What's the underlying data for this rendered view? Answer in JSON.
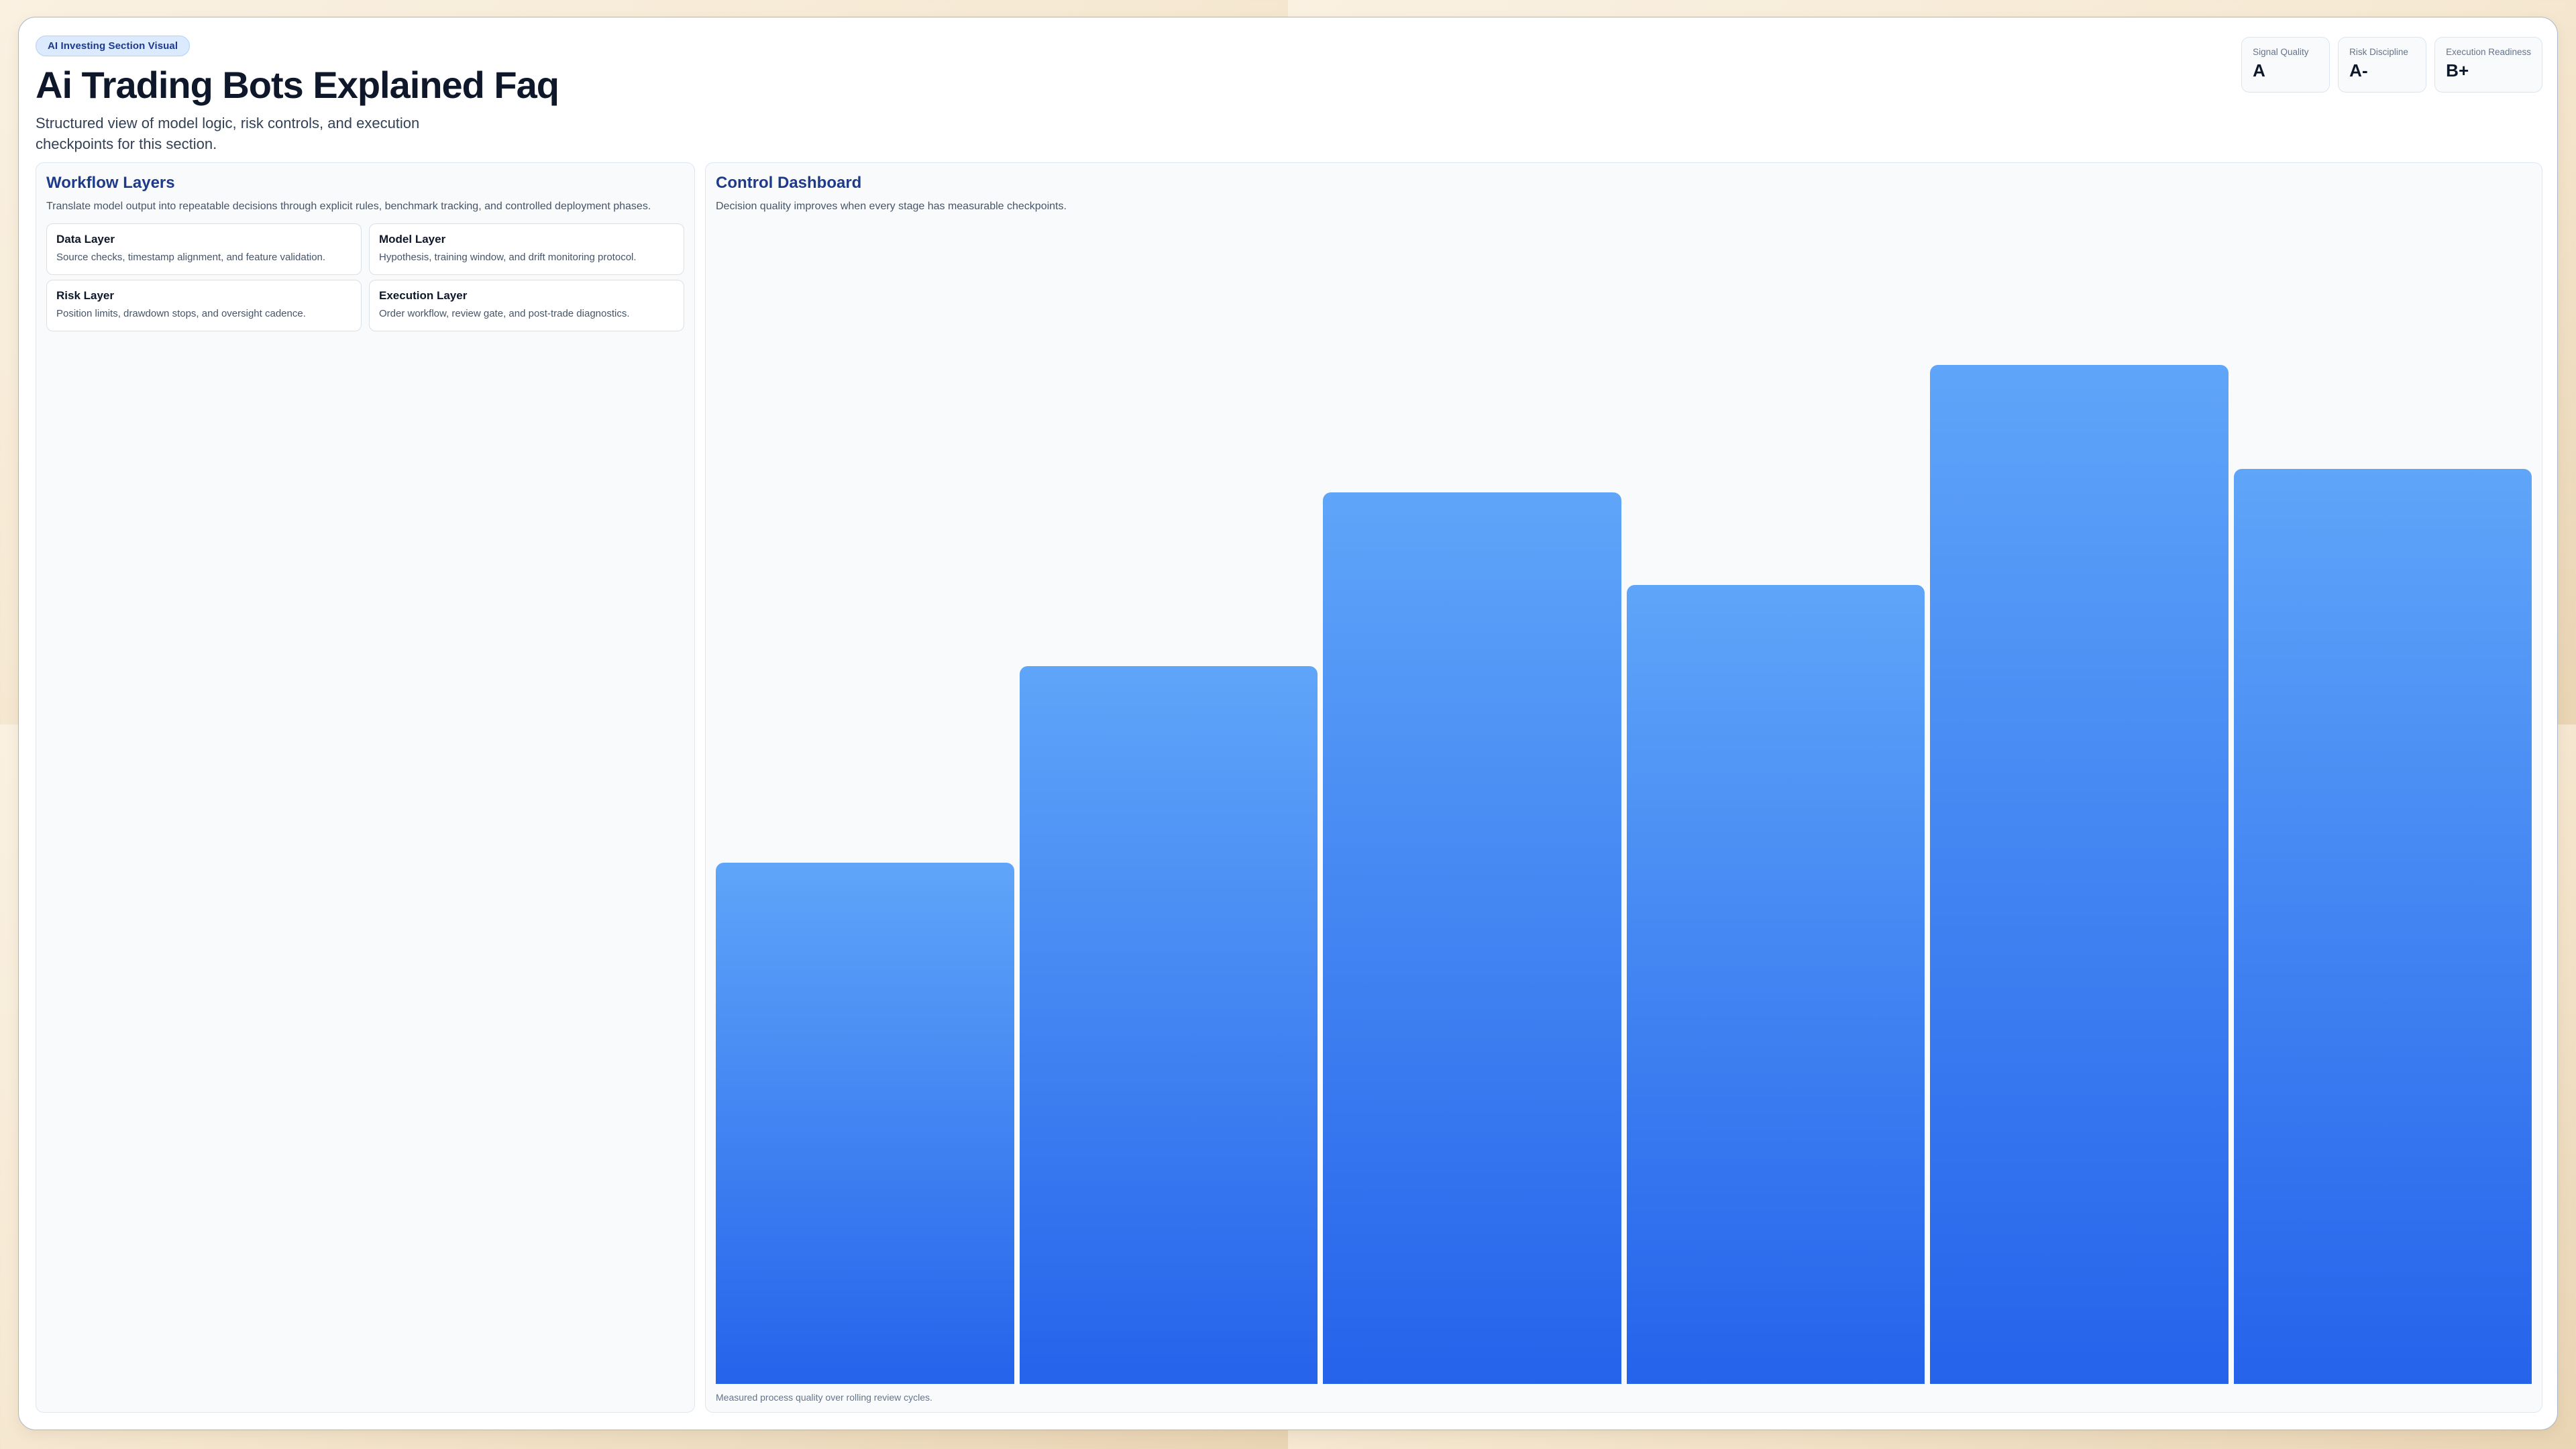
{
  "badge": "AI Investing Section Visual",
  "title": "Ai Trading Bots Explained Faq",
  "subtitle": "Structured view of model logic, risk controls, and execution checkpoints for this section.",
  "stats": [
    {
      "label": "Signal Quality",
      "value": "A"
    },
    {
      "label": "Risk Discipline",
      "value": "A-"
    },
    {
      "label": "Execution Readiness",
      "value": "B+"
    }
  ],
  "workflow": {
    "heading": "Workflow Layers",
    "description": "Translate model output into repeatable decisions through explicit rules, benchmark tracking, and controlled deployment phases.",
    "layers": [
      {
        "title": "Data Layer",
        "description": "Source checks, timestamp alignment, and feature validation."
      },
      {
        "title": "Model Layer",
        "description": "Hypothesis, training window, and drift monitoring protocol."
      },
      {
        "title": "Risk Layer",
        "description": "Position limits, drawdown stops, and oversight cadence."
      },
      {
        "title": "Execution Layer",
        "description": "Order workflow, review gate, and post-trade diagnostics."
      }
    ]
  },
  "dashboard": {
    "heading": "Control Dashboard",
    "description": "Decision quality improves when every stage has measurable checkpoints.",
    "caption": "Measured process quality over rolling review cycles."
  },
  "chart_data": {
    "type": "bar",
    "categories": [],
    "values": [
      45,
      62,
      77,
      69,
      88,
      79
    ],
    "title": "Control Dashboard",
    "xlabel": "",
    "ylabel": "",
    "ylim": [
      0,
      100
    ],
    "grid": false,
    "legend": false,
    "caption": "Measured process quality over rolling review cycles.",
    "bar_gradient_top": "#5fa5f9",
    "bar_gradient_bottom": "#2563eb"
  },
  "colors": {
    "accent_heading": "#1e3a8a",
    "badge_bg": "#dbeafe",
    "panel_bg": "#f8fafc",
    "page_bg_start": "#faf1e2",
    "page_bg_end": "#e9d4b3",
    "text_dark": "#0f172a",
    "text_muted": "#475569"
  }
}
